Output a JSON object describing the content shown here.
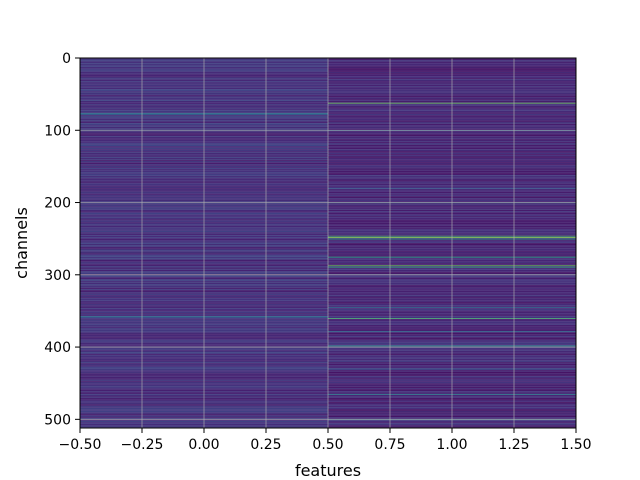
{
  "chart_data": {
    "type": "heatmap",
    "title": "",
    "xlabel": "features",
    "ylabel": "channels",
    "xlim": [
      -0.5,
      1.5
    ],
    "ylim": [
      512,
      0
    ],
    "grid": true,
    "colormap": "viridis",
    "color_range": [
      0,
      1
    ],
    "n_rows": 512,
    "n_cols": 2,
    "columns": [
      {
        "feature": 0,
        "base_level": 0.08,
        "highlights": [
          {
            "channel": 76,
            "value": 0.45
          },
          {
            "channel": 78,
            "value": 0.35
          },
          {
            "channel": 120,
            "value": 0.25
          },
          {
            "channel": 150,
            "value": 0.2
          },
          {
            "channel": 200,
            "value": 0.2
          },
          {
            "channel": 231,
            "value": 0.18
          },
          {
            "channel": 300,
            "value": 0.2
          },
          {
            "channel": 357,
            "value": 0.38
          },
          {
            "channel": 359,
            "value": 0.3
          },
          {
            "channel": 420,
            "value": 0.18
          },
          {
            "channel": 465,
            "value": 0.2
          }
        ]
      },
      {
        "feature": 1,
        "base_level": 0.05,
        "highlights": [
          {
            "channel": 62,
            "value": 0.78
          },
          {
            "channel": 100,
            "value": 0.3
          },
          {
            "channel": 180,
            "value": 0.28
          },
          {
            "channel": 200,
            "value": 0.35
          },
          {
            "channel": 246,
            "value": 0.7
          },
          {
            "channel": 248,
            "value": 0.82
          },
          {
            "channel": 250,
            "value": 0.6
          },
          {
            "channel": 275,
            "value": 0.62
          },
          {
            "channel": 287,
            "value": 0.78
          },
          {
            "channel": 289,
            "value": 0.62
          },
          {
            "channel": 345,
            "value": 0.35
          },
          {
            "channel": 360,
            "value": 0.7
          },
          {
            "channel": 378,
            "value": 0.35
          },
          {
            "channel": 398,
            "value": 0.52
          },
          {
            "channel": 430,
            "value": 0.3
          },
          {
            "channel": 465,
            "value": 0.45
          },
          {
            "channel": 500,
            "value": 0.35
          }
        ]
      }
    ],
    "x_ticks": [
      -0.5,
      -0.25,
      0.0,
      0.25,
      0.5,
      0.75,
      1.0,
      1.25,
      1.5
    ],
    "x_tick_labels": [
      "−0.50",
      "−0.25",
      "0.00",
      "0.25",
      "0.50",
      "0.75",
      "1.00",
      "1.25",
      "1.50"
    ],
    "y_ticks": [
      0,
      100,
      200,
      300,
      400,
      500
    ],
    "y_tick_labels": [
      "0",
      "100",
      "200",
      "300",
      "400",
      "500"
    ]
  }
}
